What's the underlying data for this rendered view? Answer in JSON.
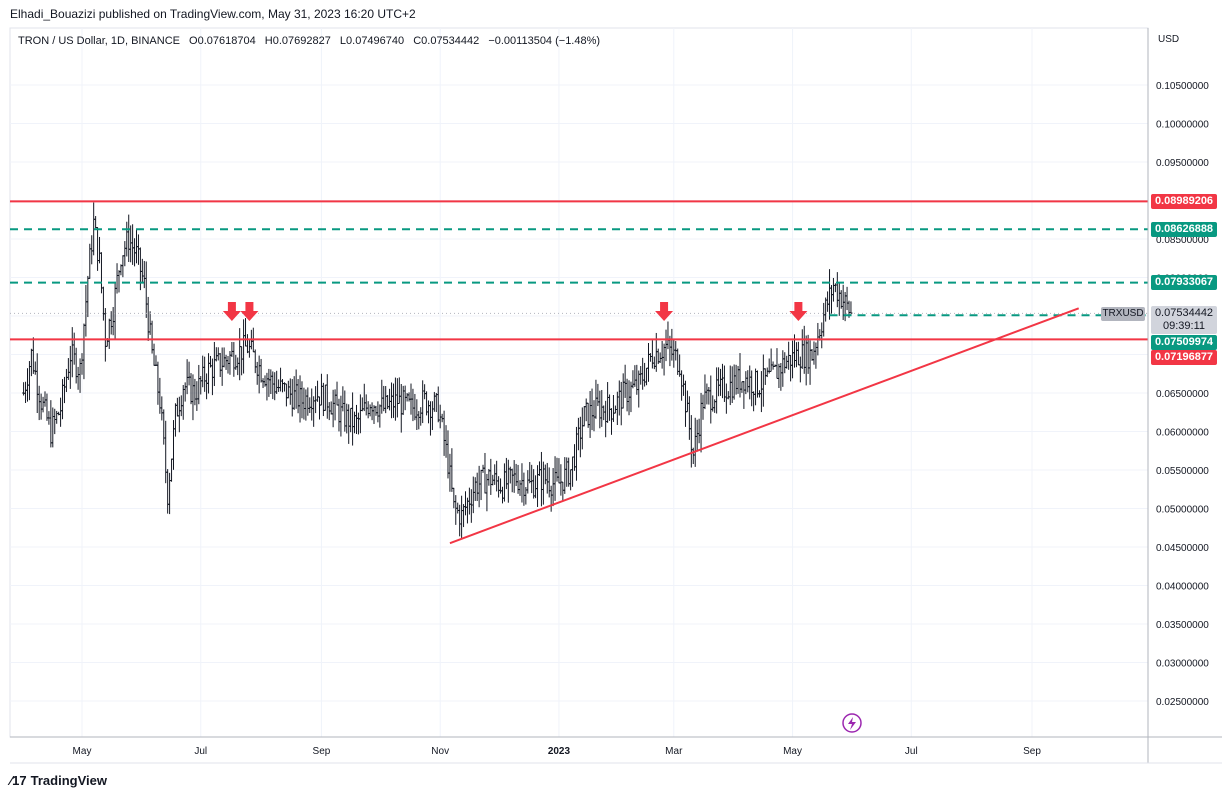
{
  "header": {
    "published": "Elhadi_Bouazizi published on TradingView.com, May 31, 2023 16:20 UTC+2"
  },
  "legend": {
    "symbol": "TRON / US Dollar, 1D, BINANCE",
    "open": "O0.07618704",
    "high": "H0.07692827",
    "low": "L0.07496740",
    "close": "C0.07534442",
    "change": "−0.00113504 (−1.48%)"
  },
  "footer": {
    "brand": "TradingView"
  },
  "price_axis": {
    "currency": "USD"
  },
  "tags": {
    "symbol": "TRXUSD",
    "current_price": "0.07534442",
    "countdown": "09:39:11",
    "red_upper": "0.08989206",
    "green_upper": "0.08626888",
    "green_mid": "0.07933067",
    "green_low": "0.07509974",
    "red_low": "0.07196877"
  },
  "colors": {
    "red": "#f23645",
    "green": "#089981",
    "candle": "#131722",
    "grid": "#f0f3fa",
    "purple": "#9c27b0"
  },
  "chart_data": {
    "type": "bar",
    "subtype": "ohlc",
    "symbol": "TRXUSD",
    "timeframe": "1D",
    "y_ticks": [
      "0.10500000",
      "0.10000000",
      "0.09500000",
      "0.09000000",
      "0.08500000",
      "0.08000000",
      "0.07500000",
      "0.07000000",
      "0.06500000",
      "0.06000000",
      "0.05500000",
      "0.05000000",
      "0.04500000",
      "0.04000000",
      "0.03500000",
      "0.03000000",
      "0.02500000"
    ],
    "x_ticks": [
      "May",
      "Jul",
      "Sep",
      "Nov",
      "2023",
      "Mar",
      "May",
      "Jul",
      "Sep"
    ],
    "ylim": [
      0.021,
      0.108
    ],
    "horizontal_levels": [
      {
        "value": 0.08989206,
        "style": "solid",
        "color": "red"
      },
      {
        "value": 0.08626888,
        "style": "dashed",
        "color": "green"
      },
      {
        "value": 0.07933067,
        "style": "dashed",
        "color": "green"
      },
      {
        "value": 0.07509974,
        "style": "dashed",
        "color": "green"
      },
      {
        "value": 0.07196877,
        "style": "solid",
        "color": "red"
      }
    ],
    "trendline": {
      "from": [
        "2022-11-06",
        0.0455
      ],
      "to": [
        "2023-09-25",
        0.076
      ]
    },
    "arrows": [
      "2022-07-17",
      "2022-07-26",
      "2023-02-24",
      "2023-05-04"
    ],
    "closes": [
      [
        "2022-04-01",
        0.065
      ],
      [
        "2022-04-05",
        0.07
      ],
      [
        "2022-04-10",
        0.064
      ],
      [
        "2022-04-15",
        0.06
      ],
      [
        "2022-04-20",
        0.063
      ],
      [
        "2022-04-25",
        0.07
      ],
      [
        "2022-04-30",
        0.068
      ],
      [
        "2022-05-04",
        0.08
      ],
      [
        "2022-05-07",
        0.087
      ],
      [
        "2022-05-10",
        0.082
      ],
      [
        "2022-05-13",
        0.072
      ],
      [
        "2022-05-17",
        0.076
      ],
      [
        "2022-05-21",
        0.083
      ],
      [
        "2022-05-25",
        0.085
      ],
      [
        "2022-05-29",
        0.083
      ],
      [
        "2022-06-02",
        0.079
      ],
      [
        "2022-06-06",
        0.07
      ],
      [
        "2022-06-10",
        0.064
      ],
      [
        "2022-06-14",
        0.052
      ],
      [
        "2022-06-18",
        0.062
      ],
      [
        "2022-06-22",
        0.066
      ],
      [
        "2022-06-28",
        0.065
      ],
      [
        "2022-07-05",
        0.068
      ],
      [
        "2022-07-12",
        0.069
      ],
      [
        "2022-07-18",
        0.07
      ],
      [
        "2022-07-25",
        0.071
      ],
      [
        "2022-08-01",
        0.068
      ],
      [
        "2022-08-08",
        0.066
      ],
      [
        "2022-08-15",
        0.065
      ],
      [
        "2022-08-22",
        0.064
      ],
      [
        "2022-08-29",
        0.065
      ],
      [
        "2022-09-05",
        0.064
      ],
      [
        "2022-09-12",
        0.062
      ],
      [
        "2022-09-19",
        0.061
      ],
      [
        "2022-09-26",
        0.064
      ],
      [
        "2022-10-03",
        0.063
      ],
      [
        "2022-10-10",
        0.064
      ],
      [
        "2022-10-17",
        0.063
      ],
      [
        "2022-10-24",
        0.064
      ],
      [
        "2022-10-31",
        0.063
      ],
      [
        "2022-11-05",
        0.056
      ],
      [
        "2022-11-08",
        0.05
      ],
      [
        "2022-11-12",
        0.049
      ],
      [
        "2022-11-19",
        0.053
      ],
      [
        "2022-11-26",
        0.054
      ],
      [
        "2022-12-03",
        0.053
      ],
      [
        "2022-12-10",
        0.054
      ],
      [
        "2022-12-17",
        0.053
      ],
      [
        "2022-12-24",
        0.054
      ],
      [
        "2022-12-31",
        0.053
      ],
      [
        "2023-01-07",
        0.055
      ],
      [
        "2023-01-14",
        0.062
      ],
      [
        "2023-01-21",
        0.063
      ],
      [
        "2023-01-28",
        0.063
      ],
      [
        "2023-02-04",
        0.065
      ],
      [
        "2023-02-11",
        0.066
      ],
      [
        "2023-02-18",
        0.07
      ],
      [
        "2023-02-25",
        0.071
      ],
      [
        "2023-03-04",
        0.069
      ],
      [
        "2023-03-11",
        0.057
      ],
      [
        "2023-03-16",
        0.064
      ],
      [
        "2023-03-23",
        0.065
      ],
      [
        "2023-03-30",
        0.066
      ],
      [
        "2023-04-06",
        0.067
      ],
      [
        "2023-04-13",
        0.066
      ],
      [
        "2023-04-20",
        0.067
      ],
      [
        "2023-04-27",
        0.069
      ],
      [
        "2023-05-04",
        0.07
      ],
      [
        "2023-05-11",
        0.07
      ],
      [
        "2023-05-18",
        0.076
      ],
      [
        "2023-05-22",
        0.079
      ],
      [
        "2023-05-26",
        0.0775
      ],
      [
        "2023-05-31",
        0.0753
      ]
    ]
  }
}
